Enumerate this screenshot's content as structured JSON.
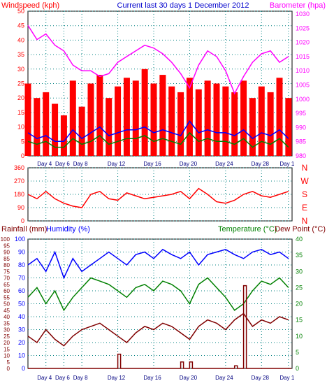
{
  "chart_data": [
    {
      "type": "bar",
      "title": "Current last 30 days 1 December 2012",
      "left_label": "Windspeed (kph)",
      "right_label": "Barometer (hpa)",
      "left_ticks": [
        "0",
        "5",
        "10",
        "15",
        "20",
        "25",
        "30",
        "35",
        "40",
        "45",
        "50"
      ],
      "right_ticks": [
        "980",
        "985",
        "990",
        "995",
        "1000",
        "1005",
        "1010",
        "1015",
        "1020",
        "1025",
        "1030"
      ],
      "ylim_left": [
        0,
        50
      ],
      "ylim_right": [
        980,
        1031
      ],
      "x_ticks": [
        "Day 4",
        "Day 6",
        "Day 8",
        "Day 12",
        "Day 16",
        "Day 20",
        "Day 24",
        "Day 28",
        "Day 1"
      ],
      "x_tick_pos": [
        4,
        6,
        8,
        12,
        16,
        20,
        24,
        28,
        31
      ],
      "xlim": [
        2,
        31.4
      ],
      "series": [
        {
          "name": "Barometer",
          "color": "#ff00ff",
          "x": [
            2,
            3,
            4,
            5,
            6,
            7,
            8,
            9,
            10,
            11,
            12,
            13,
            14,
            15,
            16,
            17,
            18,
            19,
            20,
            21,
            22,
            23,
            24,
            25,
            26,
            27,
            28,
            29,
            30,
            31
          ],
          "y": [
            1026,
            1021,
            1023,
            1019,
            1017,
            1012,
            1010,
            1010,
            1008,
            1009,
            1013,
            1015,
            1017,
            1019,
            1018,
            1016,
            1013,
            1009,
            1004,
            1012,
            1017,
            1015,
            1010,
            1002,
            1008,
            1013,
            1016,
            1017,
            1013,
            1015
          ]
        },
        {
          "name": "Windspeed",
          "color": "#ff0000",
          "x": [
            2,
            3,
            4,
            5,
            6,
            7,
            8,
            9,
            10,
            11,
            12,
            13,
            14,
            15,
            16,
            17,
            18,
            19,
            20,
            21,
            22,
            23,
            24,
            25,
            26,
            27,
            28,
            29,
            30,
            31
          ],
          "y": [
            25,
            20,
            22,
            18,
            14,
            26,
            17,
            25,
            28,
            20,
            24,
            27,
            26,
            30,
            25,
            28,
            24,
            22,
            27,
            23,
            26,
            25,
            24,
            22,
            26,
            20,
            24,
            22,
            27,
            20
          ]
        },
        {
          "name": "Gust",
          "color": "#0000ff",
          "x": [
            2,
            3,
            4,
            5,
            6,
            7,
            8,
            9,
            10,
            11,
            12,
            13,
            14,
            15,
            16,
            17,
            18,
            19,
            20,
            21,
            22,
            23,
            24,
            25,
            26,
            27,
            28,
            29,
            30,
            31
          ],
          "y": [
            8,
            6,
            7,
            5,
            5,
            9,
            6,
            8,
            10,
            7,
            8,
            9,
            9,
            10,
            8,
            9,
            8,
            7,
            12,
            8,
            9,
            8,
            8,
            7,
            9,
            6,
            8,
            7,
            9,
            6
          ]
        },
        {
          "name": "Average",
          "color": "#008000",
          "x": [
            2,
            3,
            4,
            5,
            6,
            7,
            8,
            9,
            10,
            11,
            12,
            13,
            14,
            15,
            16,
            17,
            18,
            19,
            20,
            21,
            22,
            23,
            24,
            25,
            26,
            27,
            28,
            29,
            30,
            31
          ],
          "y": [
            5,
            4,
            5,
            3,
            3,
            6,
            4,
            5,
            7,
            4,
            5,
            6,
            6,
            7,
            5,
            6,
            5,
            4,
            8,
            5,
            6,
            5,
            5,
            4,
            6,
            3,
            5,
            4,
            6,
            3
          ]
        }
      ]
    },
    {
      "type": "line",
      "right_labels": [
        "N",
        "W",
        "S",
        "E",
        "N"
      ],
      "left_ticks": [
        "0",
        "90",
        "180",
        "270",
        "360"
      ],
      "ylim": [
        0,
        360
      ],
      "x_ticks": [
        "Day 4",
        "Day 6",
        "Day 8",
        "Day 12",
        "Day 16",
        "Day 20",
        "Day 24",
        "Day 28",
        "Day 1"
      ],
      "series": [
        {
          "name": "Wind Direction",
          "color": "#ff0000",
          "x": [
            2,
            3,
            4,
            5,
            6,
            7,
            8,
            9,
            10,
            11,
            12,
            13,
            14,
            15,
            16,
            17,
            18,
            19,
            20,
            21,
            22,
            23,
            24,
            25,
            26,
            27,
            28,
            29,
            30,
            31
          ],
          "y": [
            180,
            150,
            200,
            150,
            120,
            100,
            90,
            180,
            200,
            150,
            140,
            190,
            170,
            150,
            160,
            170,
            180,
            200,
            150,
            220,
            180,
            130,
            120,
            140,
            180,
            200,
            170,
            160,
            180,
            200
          ]
        }
      ]
    },
    {
      "type": "line",
      "left_label_1": "Rainfall (mm)",
      "left_label_2": "Humidity (%)",
      "right_label_1": "Temperature (°C)",
      "right_label_2": "Dew Point (°C)",
      "rain_ticks": [
        "0",
        "5",
        "10",
        "15",
        "20",
        "25",
        "30",
        "35",
        "40",
        "45",
        "50",
        "55",
        "60",
        "65",
        "70",
        "75",
        "80",
        "85",
        "90",
        "95",
        "100"
      ],
      "hum_ticks": [
        "0",
        "10",
        "20",
        "30",
        "40",
        "50",
        "60",
        "70",
        "80",
        "90",
        "100"
      ],
      "temp_ticks": [
        "0",
        "5",
        "10",
        "15",
        "20",
        "25",
        "30",
        "35",
        "40"
      ],
      "x_ticks": [
        "Day 4",
        "Day 6",
        "Day 8",
        "Day 12",
        "Day 16",
        "Day 20",
        "Day 24",
        "Day 28",
        "Day 1"
      ],
      "series": [
        {
          "name": "Humidity",
          "color": "#0000ff",
          "x": [
            2,
            3,
            4,
            5,
            6,
            7,
            8,
            9,
            10,
            11,
            12,
            13,
            14,
            15,
            16,
            17,
            18,
            19,
            20,
            21,
            22,
            23,
            24,
            25,
            26,
            27,
            28,
            29,
            30,
            31
          ],
          "y": [
            80,
            85,
            75,
            90,
            70,
            85,
            75,
            80,
            85,
            90,
            85,
            80,
            88,
            90,
            85,
            92,
            88,
            85,
            90,
            80,
            88,
            90,
            92,
            88,
            85,
            90,
            92,
            88,
            90,
            85
          ]
        },
        {
          "name": "Temperature",
          "color": "#008000",
          "x": [
            2,
            3,
            4,
            5,
            6,
            7,
            8,
            9,
            10,
            11,
            12,
            13,
            14,
            15,
            16,
            17,
            18,
            19,
            20,
            21,
            22,
            23,
            24,
            25,
            26,
            27,
            28,
            29,
            30,
            31
          ],
          "y": [
            22,
            25,
            20,
            24,
            18,
            22,
            25,
            28,
            27,
            26,
            24,
            22,
            25,
            26,
            24,
            27,
            26,
            24,
            20,
            26,
            28,
            25,
            22,
            18,
            20,
            24,
            27,
            26,
            28,
            25
          ]
        },
        {
          "name": "Dew Point",
          "color": "#800000",
          "x": [
            2,
            3,
            4,
            5,
            6,
            7,
            8,
            9,
            10,
            11,
            12,
            13,
            14,
            15,
            16,
            17,
            18,
            19,
            20,
            21,
            22,
            23,
            24,
            25,
            26,
            27,
            28,
            29,
            30,
            31
          ],
          "y": [
            10,
            8,
            12,
            9,
            7,
            10,
            12,
            13,
            14,
            12,
            10,
            8,
            11,
            13,
            12,
            14,
            13,
            11,
            9,
            13,
            15,
            14,
            12,
            15,
            17,
            13,
            15,
            14,
            16,
            15
          ]
        },
        {
          "name": "Rainfall",
          "color": "#800000",
          "x": [
            2,
            3,
            4,
            5,
            6,
            7,
            8,
            9,
            10,
            11,
            12,
            13,
            14,
            15,
            16,
            17,
            18,
            19,
            20,
            21,
            22,
            23,
            24,
            25,
            26,
            27,
            28,
            29,
            30,
            31
          ],
          "y": [
            0,
            0,
            0,
            0,
            0,
            0,
            0,
            0,
            0,
            0,
            11,
            0,
            0,
            0,
            0,
            0,
            0,
            5,
            5,
            0,
            0,
            0,
            0,
            2,
            64,
            0,
            0,
            0,
            0,
            0
          ]
        }
      ]
    }
  ]
}
